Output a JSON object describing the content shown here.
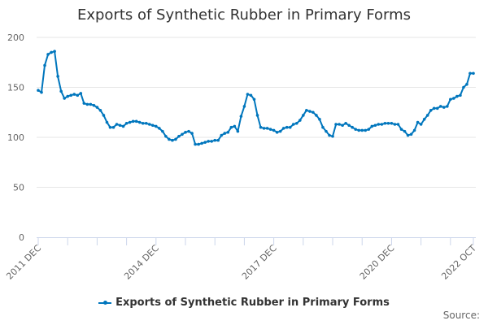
{
  "title": "Exports of Synthetic Rubber in Primary Forms",
  "legend": {
    "label": "Exports of Synthetic Rubber in Primary Forms",
    "color": "#0076bd"
  },
  "source_label": "Source:",
  "chart_data": {
    "type": "line",
    "title": "Exports of Synthetic Rubber in Primary Forms",
    "xlabel": "",
    "ylabel": "",
    "ylim": [
      0,
      200
    ],
    "yticks": [
      0,
      50,
      100,
      150,
      200
    ],
    "xtick_labels": [
      "2011 DEC",
      "2014 DEC",
      "2017 DEC",
      "2020 DEC",
      "2022 OCT"
    ],
    "grid": true,
    "legend_position": "bottom",
    "x_start": "2011 DEC",
    "x_end": "2022 OCT",
    "series": [
      {
        "name": "Exports of Synthetic Rubber in Primary Forms",
        "color": "#0076bd",
        "values": [
          147,
          145,
          172,
          183,
          185,
          186,
          161,
          146,
          139,
          141,
          142,
          143,
          142,
          144,
          134,
          133,
          133,
          132,
          130,
          127,
          122,
          115,
          110,
          110,
          113,
          112,
          111,
          114,
          115,
          116,
          116,
          115,
          114,
          114,
          113,
          112,
          111,
          109,
          106,
          101,
          98,
          97,
          98,
          101,
          103,
          105,
          106,
          104,
          93,
          93,
          94,
          95,
          96,
          96,
          97,
          97,
          102,
          104,
          105,
          110,
          111,
          106,
          121,
          131,
          143,
          142,
          138,
          122,
          110,
          109,
          109,
          108,
          107,
          105,
          106,
          109,
          110,
          110,
          113,
          114,
          117,
          122,
          127,
          126,
          125,
          122,
          118,
          110,
          106,
          102,
          101,
          113,
          113,
          112,
          114,
          112,
          110,
          108,
          107,
          107,
          107,
          108,
          111,
          112,
          113,
          113,
          114,
          114,
          114,
          113,
          113,
          108,
          106,
          102,
          103,
          107,
          115,
          113,
          118,
          122,
          127,
          129,
          129,
          131,
          130,
          131,
          138,
          139,
          141,
          142,
          150,
          153,
          164,
          164
        ]
      }
    ]
  }
}
